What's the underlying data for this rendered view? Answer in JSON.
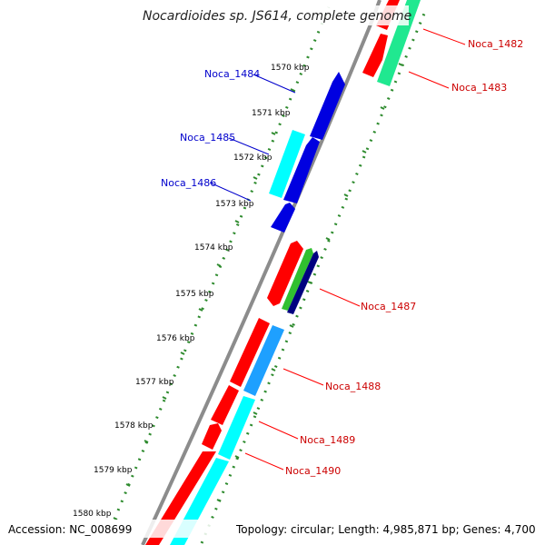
{
  "title": "Nocardioides sp. JS614, complete genome",
  "footer": {
    "accession": "Accession: NC_008699",
    "topology": "Topology: circular; Length: 4,985,871 bp; Genes: 4,700"
  },
  "colors": {
    "backbone": "#8c8c8c",
    "tick": "#2e8b2e",
    "dots": "#2e8b2e",
    "label_forward": "#cc0000",
    "label_reverse": "#0000cc",
    "red": "#ff0000",
    "blue": "#0000e0",
    "cyan": "#00ffff",
    "sky": "#1ea0ff",
    "mint": "#20e890",
    "green": "#30c030",
    "navy": "#000080"
  },
  "ticks": [
    {
      "label": "1570 kbp"
    },
    {
      "label": "1571 kbp"
    },
    {
      "label": "1572 kbp"
    },
    {
      "label": "1573 kbp"
    },
    {
      "label": "1574 kbp"
    },
    {
      "label": "1575 kbp"
    },
    {
      "label": "1576 kbp"
    },
    {
      "label": "1577 kbp"
    },
    {
      "label": "1578 kbp"
    },
    {
      "label": "1579 kbp"
    },
    {
      "label": "1580 kbp"
    }
  ],
  "genes": {
    "noca_1482": "Noca_1482",
    "noca_1483": "Noca_1483",
    "noca_1484": "Noca_1484",
    "noca_1485": "Noca_1485",
    "noca_1486": "Noca_1486",
    "noca_1487": "Noca_1487",
    "noca_1488": "Noca_1488",
    "noca_1489": "Noca_1489",
    "noca_1490": "Noca_1490"
  }
}
